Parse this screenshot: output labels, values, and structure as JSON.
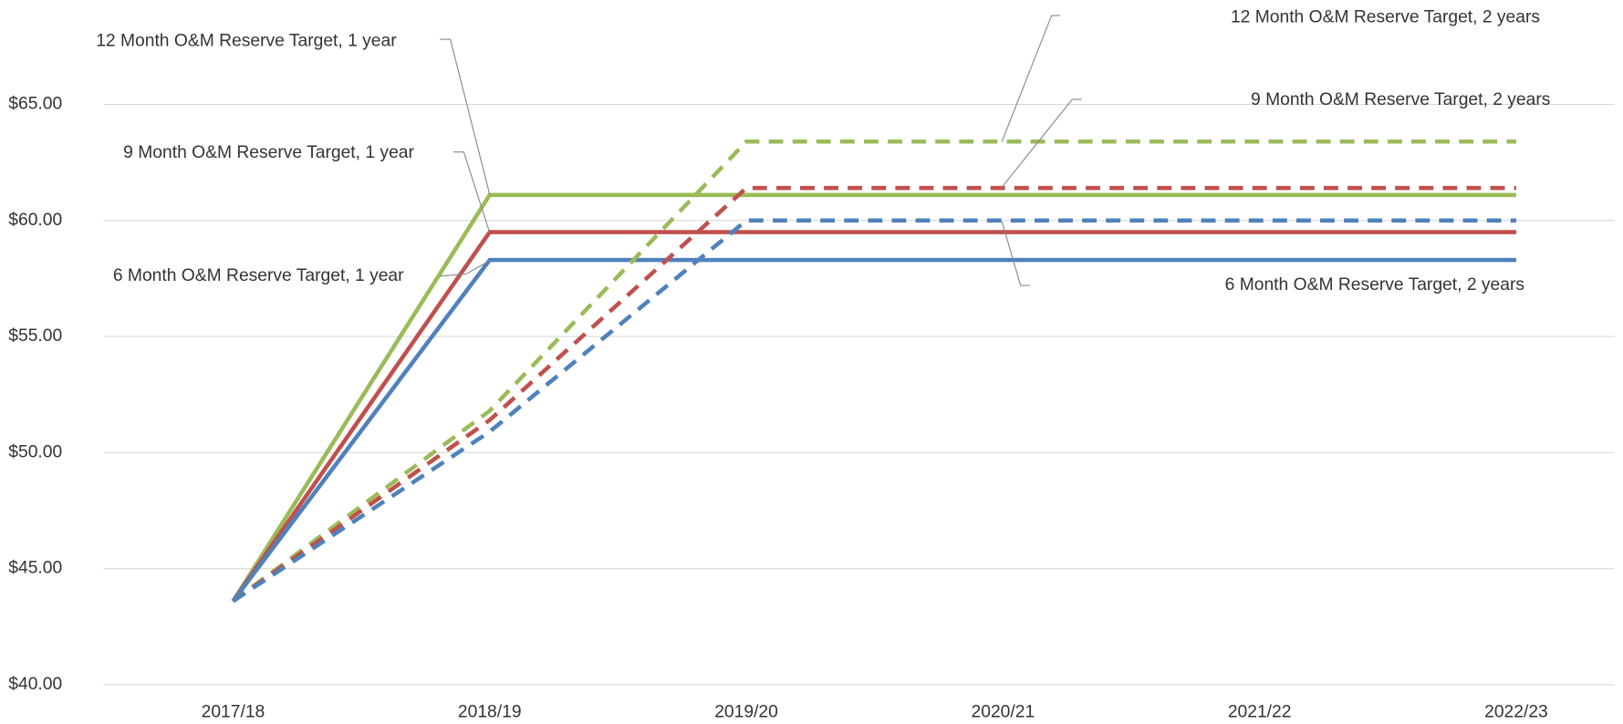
{
  "chart_data": {
    "type": "line",
    "categories": [
      "2017/18",
      "2018/19",
      "2019/20",
      "2020/21",
      "2021/22",
      "2022/23"
    ],
    "series": [
      {
        "name": "12 Month O&M Reserve Target, 1 year",
        "color": "#9bbb59",
        "dashed": false,
        "values": [
          43.6,
          61.1,
          61.1,
          61.1,
          61.1,
          61.1
        ]
      },
      {
        "name": "9 Month O&M Reserve Target, 1 year",
        "color": "#c0504d",
        "dashed": false,
        "values": [
          43.6,
          59.5,
          59.5,
          59.5,
          59.5,
          59.5
        ]
      },
      {
        "name": "6 Month O&M Reserve Target, 1 year",
        "color": "#4f81bd",
        "dashed": false,
        "values": [
          43.6,
          58.3,
          58.3,
          58.3,
          58.3,
          58.3
        ]
      },
      {
        "name": "12 Month O&M Reserve Target, 2 years",
        "color": "#9bbb59",
        "dashed": true,
        "values": [
          43.6,
          51.8,
          63.4,
          63.4,
          63.4,
          63.4
        ]
      },
      {
        "name": "9 Month O&M Reserve Target, 2 years",
        "color": "#c0504d",
        "dashed": true,
        "values": [
          43.6,
          51.4,
          61.4,
          61.4,
          61.4,
          61.4
        ]
      },
      {
        "name": "6 Month O&M Reserve Target, 2 years",
        "color": "#4f81bd",
        "dashed": true,
        "values": [
          43.6,
          50.9,
          60.0,
          60.0,
          60.0,
          60.0
        ]
      }
    ],
    "ylim": [
      40,
      65
    ],
    "yticks": [
      {
        "value": 40,
        "label": "$40.00"
      },
      {
        "value": 45,
        "label": "$45.00"
      },
      {
        "value": 50,
        "label": "$50.00"
      },
      {
        "value": 55,
        "label": "$55.00"
      },
      {
        "value": 60,
        "label": "$60.00"
      },
      {
        "value": 65,
        "label": "$65.00"
      }
    ],
    "grid": true
  }
}
